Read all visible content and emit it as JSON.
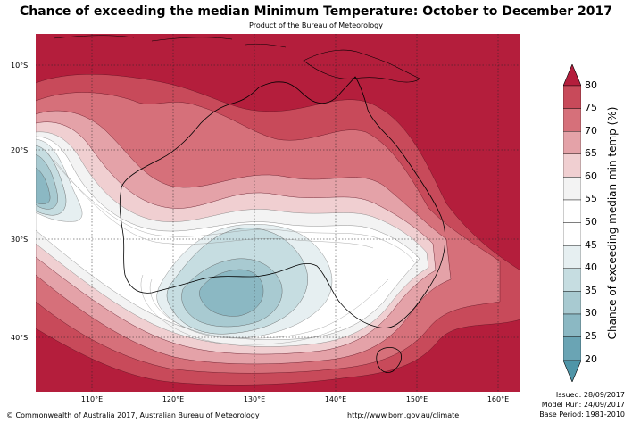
{
  "title": "Chance of exceeding the median Minimum Temperature: October to December 2017",
  "subtitle": "Product of the Bureau of Meteorology",
  "map": {
    "lat_labels": [
      "10°S",
      "20°S",
      "30°S",
      "40°S"
    ],
    "lon_labels": [
      "110°E",
      "120°E",
      "130°E",
      "140°E",
      "150°E",
      "160°E"
    ],
    "lon_range": [
      103,
      163
    ],
    "lat_range": [
      -46,
      -6
    ]
  },
  "colorbar": {
    "title": "Chance of exceeding median min temp (%)",
    "labels": [
      "80",
      "75",
      "70",
      "65",
      "60",
      "55",
      "50",
      "45",
      "40",
      "35",
      "30",
      "25",
      "20"
    ],
    "colors": {
      "over": "#b41e3c",
      "c75": "#c84a5a",
      "c70": "#d6707a",
      "c65": "#e4a2a8",
      "c60": "#f0cfd1",
      "c55": "#f3f3f3",
      "c50": "#ffffff",
      "c45": "#ffffff",
      "c40": "#e6eff1",
      "c35": "#c6dde1",
      "c30": "#a8cad1",
      "c25": "#8bb8c3",
      "c20": "#6aa4b4",
      "under": "#4f95a8"
    }
  },
  "footer": {
    "copyright": "© Commonwealth of Australia 2017, Australian Bureau of Meteorology",
    "url": "http://www.bom.gov.au/climate",
    "issued": "Issued: 28/09/2017",
    "model_run": "Model Run: 24/09/2017",
    "base_period": "Base Period: 1981-2010"
  }
}
